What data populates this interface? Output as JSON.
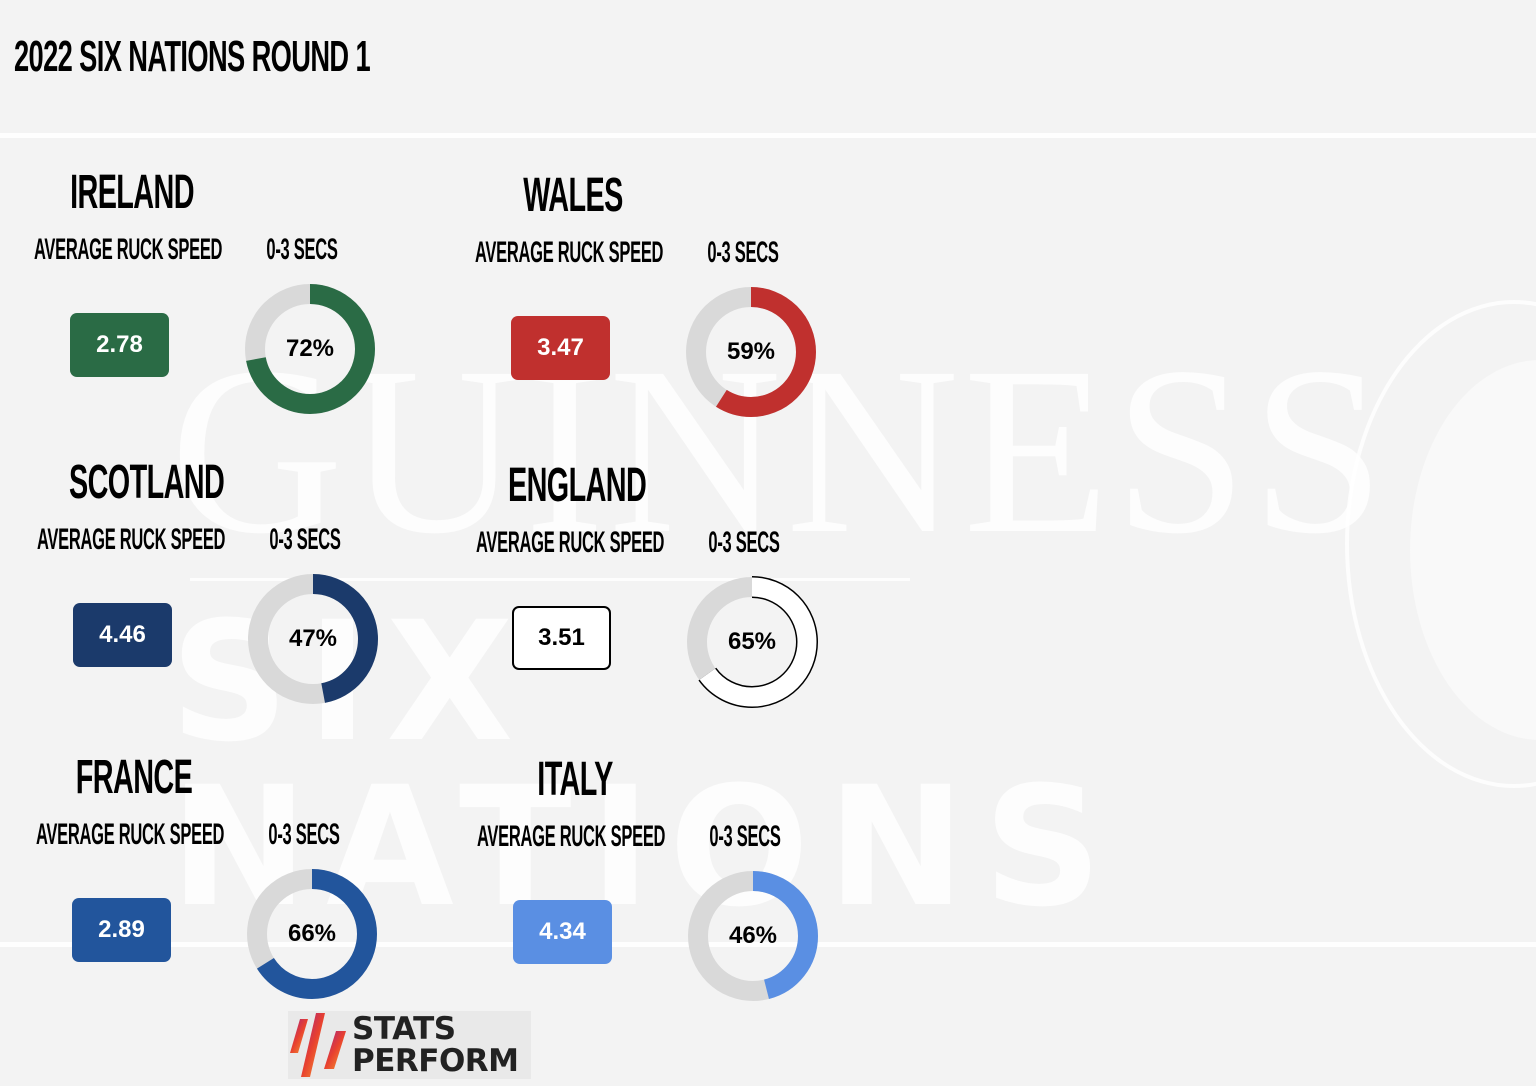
{
  "title": "2022 SIX NATIONS ROUND 1",
  "watermark": {
    "line1": "GUINNESS",
    "line2": "SIX NATIONS"
  },
  "labels": {
    "ruck_speed": "AVERAGE RUCK SPEED",
    "secs": "0-3 SECS"
  },
  "teams": [
    {
      "name": "IRELAND",
      "ruck_speed": "2.78",
      "pct_label": "72%",
      "pct": 72,
      "color": "#2a6b45",
      "outlined": false
    },
    {
      "name": "WALES",
      "ruck_speed": "3.47",
      "pct_label": "59%",
      "pct": 59,
      "color": "#c0302e",
      "outlined": false
    },
    {
      "name": "SCOTLAND",
      "ruck_speed": "4.46",
      "pct_label": "47%",
      "pct": 47,
      "color": "#1b3a6b",
      "outlined": false
    },
    {
      "name": "ENGLAND",
      "ruck_speed": "3.51",
      "pct_label": "65%",
      "pct": 65,
      "color": "#ffffff",
      "outlined": true
    },
    {
      "name": "FRANCE",
      "ruck_speed": "2.89",
      "pct_label": "66%",
      "pct": 66,
      "color": "#22559c",
      "outlined": false
    },
    {
      "name": "ITALY",
      "ruck_speed": "4.34",
      "pct_label": "46%",
      "pct": 46,
      "color": "#5a8fe3",
      "outlined": false
    }
  ],
  "track_color": "#d9d9d9",
  "logo": {
    "line1": "STATS",
    "line2": "PERFORM"
  },
  "chart_data": {
    "type": "donut-grid",
    "title": "2022 SIX NATIONS ROUND 1",
    "categories": [
      "IRELAND",
      "WALES",
      "SCOTLAND",
      "ENGLAND",
      "FRANCE",
      "ITALY"
    ],
    "series": [
      {
        "name": "AVERAGE RUCK SPEED",
        "values": [
          2.78,
          3.47,
          4.46,
          3.51,
          2.89,
          4.34
        ]
      },
      {
        "name": "0-3 SECS (%)",
        "values": [
          72,
          59,
          47,
          65,
          66,
          46
        ]
      }
    ],
    "colors": [
      "#2a6b45",
      "#c0302e",
      "#1b3a6b",
      "#ffffff",
      "#22559c",
      "#5a8fe3"
    ],
    "source": "STATS PERFORM"
  }
}
